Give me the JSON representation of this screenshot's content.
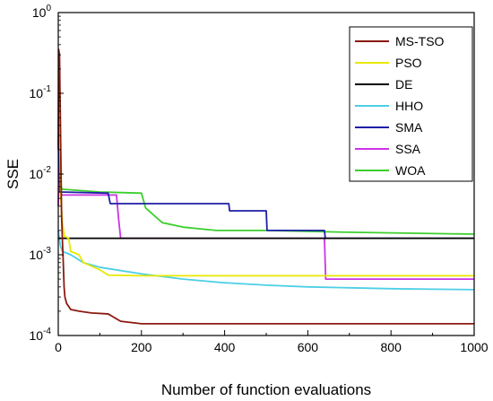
{
  "chart_data": {
    "type": "line",
    "title": "",
    "xlabel": "Number of function evaluations",
    "ylabel": "SSE",
    "xlim": [
      0,
      1000
    ],
    "ylim": [
      0.0001,
      1
    ],
    "yscale": "log",
    "grid": false,
    "legend_position": "top-right",
    "x_ticks": [
      "0",
      "200",
      "400",
      "600",
      "800",
      "1000"
    ],
    "y_ticks": [
      {
        "base": "10",
        "exp": "0",
        "value": 1
      },
      {
        "base": "10",
        "exp": "-1",
        "value": 0.1
      },
      {
        "base": "10",
        "exp": "-2",
        "value": 0.01
      },
      {
        "base": "10",
        "exp": "-3",
        "value": 0.001
      },
      {
        "base": "10",
        "exp": "-4",
        "value": 0.0001
      }
    ],
    "series": [
      {
        "name": "MS-TSO",
        "color": "#8B1A10",
        "points": [
          [
            0,
            0.02
          ],
          [
            1,
            0.35
          ],
          [
            3,
            0.3
          ],
          [
            5,
            0.05
          ],
          [
            8,
            0.003
          ],
          [
            10,
            0.0015
          ],
          [
            12,
            0.0008
          ],
          [
            14,
            0.0004
          ],
          [
            16,
            0.0003
          ],
          [
            20,
            0.00025
          ],
          [
            30,
            0.00021
          ],
          [
            50,
            0.0002
          ],
          [
            80,
            0.00019
          ],
          [
            120,
            0.000185
          ],
          [
            150,
            0.00015
          ],
          [
            200,
            0.00014
          ],
          [
            400,
            0.00014
          ],
          [
            1000,
            0.00014
          ]
        ]
      },
      {
        "name": "PSO",
        "color": "#E8E800",
        "points": [
          [
            0,
            0.04
          ],
          [
            3,
            0.05
          ],
          [
            6,
            0.005
          ],
          [
            10,
            0.0025
          ],
          [
            15,
            0.0017
          ],
          [
            25,
            0.0016
          ],
          [
            30,
            0.0011
          ],
          [
            50,
            0.001
          ],
          [
            60,
            0.0008
          ],
          [
            100,
            0.00065
          ],
          [
            120,
            0.00056
          ],
          [
            200,
            0.00055
          ],
          [
            1000,
            0.00055
          ]
        ]
      },
      {
        "name": "DE",
        "color": "#000000",
        "points": [
          [
            0,
            0.0016
          ],
          [
            1000,
            0.0016
          ]
        ]
      },
      {
        "name": "HHO",
        "color": "#4DCFE6",
        "points": [
          [
            0,
            0.002
          ],
          [
            5,
            0.0013
          ],
          [
            10,
            0.0011
          ],
          [
            30,
            0.001
          ],
          [
            60,
            0.0008
          ],
          [
            100,
            0.0007
          ],
          [
            200,
            0.00058
          ],
          [
            300,
            0.0005
          ],
          [
            400,
            0.00045
          ],
          [
            500,
            0.00042
          ],
          [
            600,
            0.0004
          ],
          [
            700,
            0.00039
          ],
          [
            800,
            0.00038
          ],
          [
            900,
            0.000375
          ],
          [
            1000,
            0.00037
          ]
        ]
      },
      {
        "name": "SMA",
        "color": "#1F1FA8",
        "points": [
          [
            0,
            0.025
          ],
          [
            2,
            0.03
          ],
          [
            4,
            0.006
          ],
          [
            120,
            0.0058
          ],
          [
            125,
            0.0043
          ],
          [
            410,
            0.0043
          ],
          [
            412,
            0.0035
          ],
          [
            500,
            0.0035
          ],
          [
            502,
            0.002
          ],
          [
            640,
            0.002
          ],
          [
            642,
            0.0016
          ],
          [
            1000,
            0.0016
          ]
        ]
      },
      {
        "name": "SSA",
        "color": "#CC33E6",
        "points": [
          [
            0,
            0.004
          ],
          [
            3,
            0.03
          ],
          [
            6,
            0.0055
          ],
          [
            140,
            0.0055
          ],
          [
            145,
            0.0028
          ],
          [
            150,
            0.0016
          ],
          [
            640,
            0.0016
          ],
          [
            643,
            0.0005
          ],
          [
            1000,
            0.0005
          ]
        ]
      },
      {
        "name": "WOA",
        "color": "#3CCF2E",
        "points": [
          [
            0,
            0.01
          ],
          [
            3,
            0.01
          ],
          [
            8,
            0.0065
          ],
          [
            100,
            0.006
          ],
          [
            200,
            0.0058
          ],
          [
            210,
            0.0038
          ],
          [
            250,
            0.0025
          ],
          [
            300,
            0.0022
          ],
          [
            380,
            0.002
          ],
          [
            500,
            0.002
          ],
          [
            700,
            0.0019
          ],
          [
            1000,
            0.0018
          ]
        ]
      }
    ]
  }
}
